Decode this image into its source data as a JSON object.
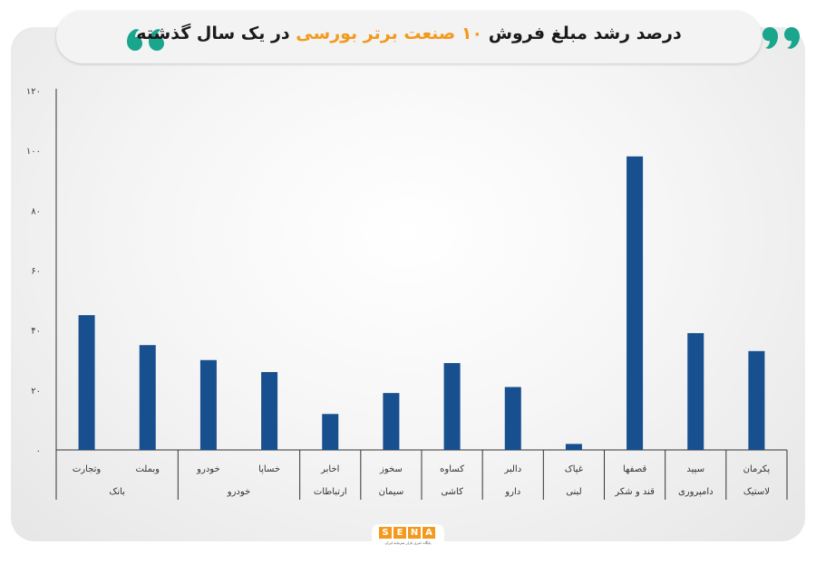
{
  "title": {
    "before": "درصد رشد مبلغ فروش ",
    "highlight": "۱۰ صنعت برتر بورسی",
    "after": " در یک سال گذشته"
  },
  "colors": {
    "bar": "#174f8f",
    "accent": "#f39a1e",
    "quote": "#1aa58d"
  },
  "logo": {
    "letters": [
      "S",
      "E",
      "N",
      "A"
    ],
    "subtitle": "پایگاه خبری بازار سرمایه ایران"
  },
  "chart_data": {
    "type": "bar",
    "ylim": [
      0,
      120
    ],
    "y_ticks": [
      "۰",
      "۲۰",
      "۴۰",
      "۶۰",
      "۸۰",
      "۱۰۰",
      "۱۲۰"
    ],
    "tick_values": [
      0,
      20,
      40,
      60,
      80,
      100,
      120
    ],
    "grid": false,
    "categories": [
      "وتجارت",
      "وبملت",
      "خودرو",
      "خساپا",
      "اخابر",
      "سخوز",
      "کساوه",
      "دالبر",
      "غپاک",
      "قصفها",
      "سپید",
      "پکرمان"
    ],
    "values": [
      45,
      35,
      30,
      26,
      12,
      19,
      29,
      21,
      2,
      98,
      39,
      33
    ],
    "groups": [
      {
        "label": "بانک",
        "span": 2
      },
      {
        "label": "خودرو",
        "span": 2
      },
      {
        "label": "ارتباطات",
        "span": 1
      },
      {
        "label": "سیمان",
        "span": 1
      },
      {
        "label": "کاشی",
        "span": 1
      },
      {
        "label": "دارو",
        "span": 1
      },
      {
        "label": "لبنی",
        "span": 1
      },
      {
        "label": "قند و شکر",
        "span": 1
      },
      {
        "label": "دامپروری",
        "span": 1
      },
      {
        "label": "لاستیک",
        "span": 1
      }
    ]
  }
}
